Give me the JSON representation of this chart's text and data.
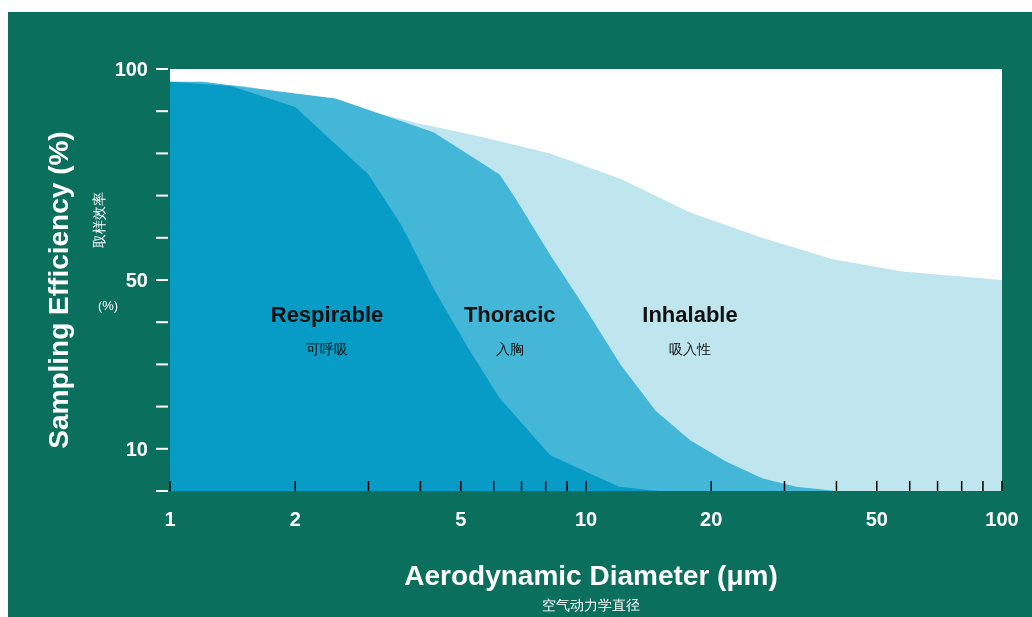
{
  "chart_data": {
    "type": "area",
    "xlabel": "Aerodynamic Diameter (μm)",
    "ylabel": "Sampling Efficiency (%)",
    "log": "x",
    "xlim": [
      1,
      100
    ],
    "ylim": [
      0,
      100
    ],
    "xticks": [
      1,
      2,
      {
        "value": 3,
        "label": null
      },
      {
        "value": 4,
        "label": null
      },
      5,
      {
        "value": 6,
        "label": null
      },
      {
        "value": 7,
        "label": null
      },
      {
        "value": 8,
        "label": null
      },
      {
        "value": 9,
        "label": null
      },
      10,
      20,
      {
        "value": 30,
        "label": null
      },
      {
        "value": 40,
        "label": null
      },
      50,
      {
        "value": 60,
        "label": null
      },
      {
        "value": 70,
        "label": null
      },
      {
        "value": 80,
        "label": null
      },
      {
        "value": 90,
        "label": null
      },
      100
    ],
    "yticks": [
      {
        "value": 0,
        "label": null
      },
      10,
      {
        "value": 20,
        "label": null
      },
      {
        "value": 30,
        "label": null
      },
      {
        "value": 40,
        "label": null
      },
      50,
      {
        "value": 60,
        "label": null
      },
      {
        "value": 70,
        "label": null
      },
      {
        "value": 80,
        "label": null
      },
      {
        "value": 90,
        "label": null
      },
      100
    ],
    "series": [
      {
        "name": "Inhalable",
        "color": "#bfe5ef",
        "x": [
          1,
          1.5,
          2,
          3,
          4,
          5.56,
          8.2,
          12.1,
          17.8,
          26.5,
          39,
          57.6,
          100
        ],
        "values": [
          97,
          96,
          94,
          90,
          87,
          84,
          80,
          74,
          66,
          60,
          55,
          52,
          50
        ]
      },
      {
        "name": "Thoracic",
        "color": "#44b6d7",
        "x": [
          1,
          1.2,
          2.5,
          4.3,
          6.2,
          6.7,
          8.2,
          10,
          12.1,
          14.7,
          17.8,
          21.7,
          26.5,
          32,
          40
        ],
        "values": [
          97,
          97,
          93,
          85,
          75,
          70,
          56,
          43,
          30,
          19,
          12,
          7,
          3,
          1,
          0
        ]
      },
      {
        "name": "Respirable",
        "color": "#079cc6",
        "x": [
          1,
          1.4,
          2,
          3,
          3.6,
          4.3,
          5.2,
          6.2,
          8.2,
          12,
          15
        ],
        "values": [
          97,
          96,
          91,
          75,
          63,
          48,
          34,
          22,
          8.5,
          1,
          0
        ]
      }
    ],
    "annotations": [
      "吸入性",
      "入胸",
      "可呼吸",
      "取样效率",
      "(%)",
      "空气动力学直径"
    ],
    "grid": false
  }
}
